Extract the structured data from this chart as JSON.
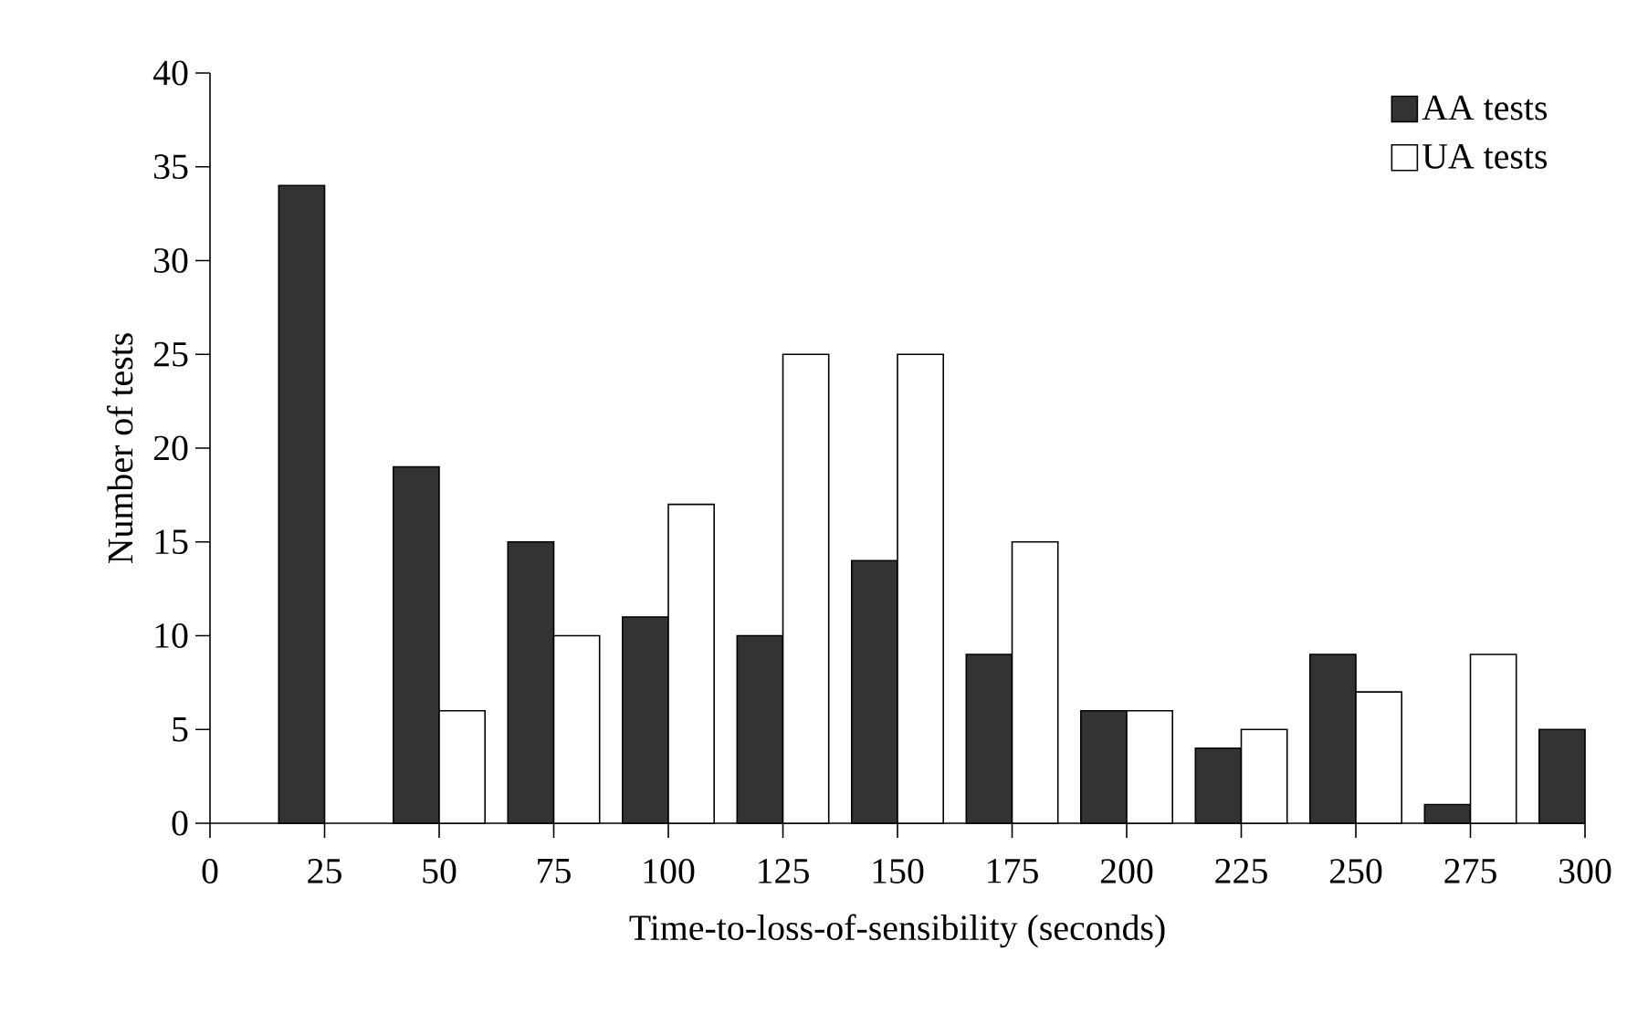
{
  "chart_data": {
    "type": "bar",
    "xlabel": "Time-to-loss-of-sensibility (seconds)",
    "ylabel": "Number of tests",
    "x": [
      25,
      50,
      75,
      100,
      125,
      150,
      175,
      200,
      225,
      250,
      275,
      300
    ],
    "series": [
      {
        "name": "AA tests",
        "color": "#333333",
        "values": [
          34,
          19,
          15,
          11,
          10,
          14,
          9,
          6,
          4,
          9,
          1,
          5
        ]
      },
      {
        "name": "UA tests",
        "color": "#ffffff",
        "values": [
          null,
          6,
          10,
          17,
          25,
          25,
          15,
          6,
          5,
          7,
          9,
          null
        ]
      }
    ],
    "xlim": [
      0,
      300
    ],
    "xticks": [
      0,
      25,
      50,
      75,
      100,
      125,
      150,
      175,
      200,
      225,
      250,
      275,
      300
    ],
    "ylim": [
      0,
      40
    ],
    "yticks": [
      0,
      5,
      10,
      15,
      20,
      25,
      30,
      35,
      40
    ],
    "legend": "top right",
    "grid": false
  }
}
